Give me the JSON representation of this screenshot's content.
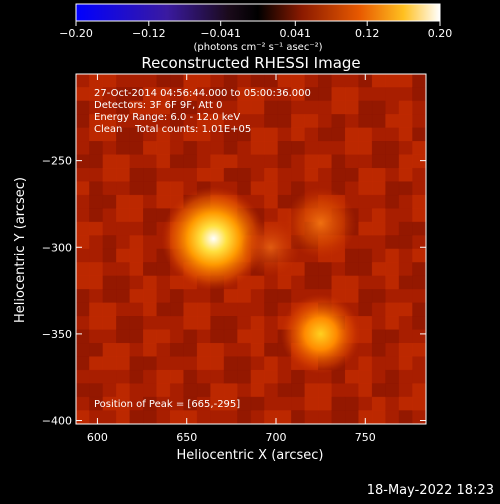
{
  "chart_data": {
    "type": "heatmap",
    "title": "Reconstructed RHESSI Image",
    "xlabel": "Heliocentric X (arcsec)",
    "ylabel": "Heliocentric Y (arcsec)",
    "xlim": [
      588,
      784
    ],
    "ylim": [
      -402,
      -200
    ],
    "x_ticks": [
      600,
      650,
      700,
      750
    ],
    "y_ticks": [
      -250,
      -300,
      -350,
      -400
    ],
    "grid": false,
    "colorbar": {
      "title": "(photons cm⁻² s⁻¹ asec⁻²)",
      "ticks": [
        -0.2,
        -0.12,
        -0.041,
        0.041,
        0.12,
        0.2
      ],
      "tick_labels": [
        "−0.20",
        "−0.12",
        "−0.041",
        "0.041",
        "0.12",
        "0.20"
      ],
      "range": [
        -0.2,
        0.2
      ]
    },
    "annotations": [
      "27-Oct-2014 04:56:44.000 to 05:00:36.000",
      "Detectors: 3F 6F 9F, Att 0",
      "Energy Range: 6.0 - 12.0 keV",
      "Clean    Total counts: 1.01E+05"
    ],
    "peak_label": "Position of Peak = [665,-295]",
    "sources": [
      {
        "x": 665,
        "y": -295,
        "relative_intensity": 1.0
      },
      {
        "x": 725,
        "y": -350,
        "relative_intensity": 0.6
      },
      {
        "x": 725,
        "y": -286,
        "relative_intensity": 0.45
      },
      {
        "x": 697,
        "y": -300,
        "relative_intensity": 0.25
      }
    ],
    "background_level": 0.12,
    "colormap": [
      "#000000",
      "#4b0f0f",
      "#8b1a00",
      "#c83200",
      "#e85a00",
      "#ff9a00",
      "#ffe040",
      "#ffffff"
    ]
  },
  "footer_timestamp": "18-May-2022 18:23"
}
